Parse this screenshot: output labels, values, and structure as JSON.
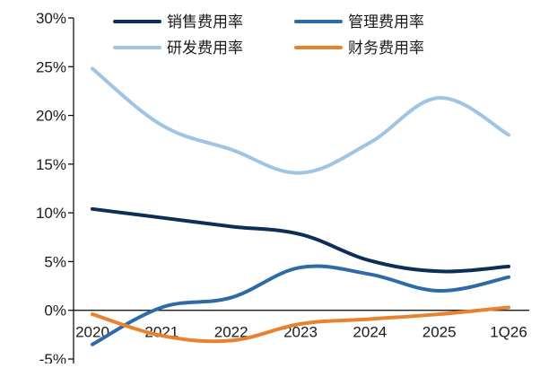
{
  "chart_data": {
    "type": "line",
    "title": "",
    "xlabel": "",
    "ylabel": "",
    "categories": [
      "2020",
      "2021",
      "2022",
      "2023",
      "2024",
      "2025",
      "1Q26"
    ],
    "y_ticks": [
      -5,
      0,
      5,
      10,
      15,
      20,
      25,
      30
    ],
    "y_tick_labels": [
      "-5%",
      "0%",
      "5%",
      "10%",
      "15%",
      "20%",
      "25%",
      "30%"
    ],
    "ylim": [
      -5,
      30
    ],
    "grid": false,
    "legend_position": "top",
    "series": [
      {
        "name": "销售费用率",
        "color": "#0d2f56",
        "values": [
          10.4,
          9.5,
          8.6,
          7.8,
          5.1,
          4.0,
          4.5
        ]
      },
      {
        "name": "管理费用率",
        "color": "#2e6aa6",
        "values": [
          -3.5,
          0.3,
          1.3,
          4.4,
          3.7,
          2.0,
          3.4
        ]
      },
      {
        "name": "研发费用率",
        "color": "#9fc4e4",
        "values": [
          24.8,
          19.0,
          16.5,
          14.1,
          17.2,
          21.8,
          18.0
        ]
      },
      {
        "name": "财务费用率",
        "color": "#e8822e",
        "values": [
          -0.4,
          -2.6,
          -3.1,
          -1.4,
          -0.9,
          -0.4,
          0.3
        ]
      }
    ]
  }
}
